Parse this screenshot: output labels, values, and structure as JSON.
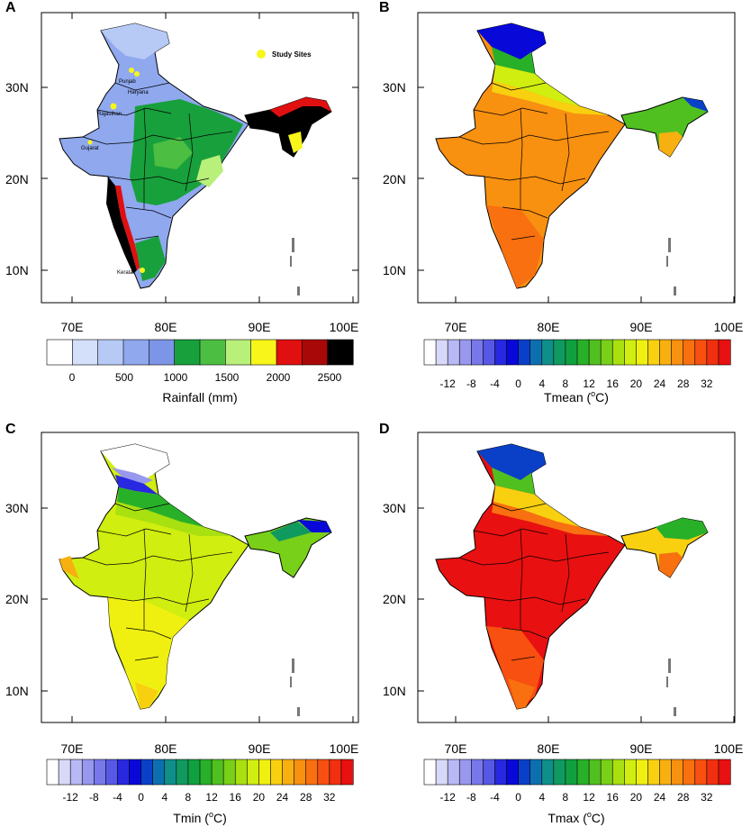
{
  "lon_ticks": [
    "70E",
    "80E",
    "90E",
    "100E"
  ],
  "lat_ticks": [
    "30N",
    "20N",
    "10N"
  ],
  "panels": {
    "A": {
      "letter": "A",
      "title": "Rainfall (mm)",
      "legend_labels": [
        "0",
        "500",
        "1000",
        "1500",
        "2000",
        "2500"
      ],
      "legend_colors": [
        "#ffffff",
        "#d4dffa",
        "#b7c9f5",
        "#8fa8ee",
        "#7d95e6",
        "#18a03c",
        "#4cbe42",
        "#b8f07a",
        "#f8f51a",
        "#e01010",
        "#a80808",
        "#000000"
      ],
      "map_labels": {
        "legend_site": "Study Sites",
        "punjab": "Punjab",
        "haryana": "Haryana",
        "rajasthan": "Rajasthan",
        "gujarat": "Gujarat",
        "kerala": "Kerala"
      }
    },
    "B": {
      "letter": "B",
      "title_prefix": "Tmean (",
      "title_sup": "o",
      "title_suffix": "C)",
      "legend_labels": [
        "-12",
        "-8",
        "-4",
        "0",
        "4",
        "8",
        "12",
        "16",
        "20",
        "24",
        "28",
        "32"
      ]
    },
    "C": {
      "letter": "C",
      "title_prefix": "Tmin (",
      "title_sup": "o",
      "title_suffix": "C)",
      "legend_labels": [
        "-12",
        "-8",
        "-4",
        "0",
        "4",
        "8",
        "12",
        "16",
        "20",
        "24",
        "28",
        "32"
      ]
    },
    "D": {
      "letter": "D",
      "title_prefix": "Tmax (",
      "title_sup": "o",
      "title_suffix": "C)",
      "legend_labels": [
        "-12",
        "-8",
        "-4",
        "0",
        "4",
        "8",
        "12",
        "16",
        "20",
        "24",
        "28",
        "32"
      ]
    }
  },
  "temp_colors": [
    "#ffffff",
    "#d8d8f8",
    "#b8b8f4",
    "#9898ee",
    "#7878ea",
    "#5858e6",
    "#2828e0",
    "#0808d8",
    "#0a40c8",
    "#0c70b0",
    "#0e8f8a",
    "#109a60",
    "#10a040",
    "#28b028",
    "#50c020",
    "#78d018",
    "#a8e010",
    "#d0ee10",
    "#f0f010",
    "#f8d010",
    "#f8b010",
    "#f89010",
    "#f87010",
    "#f85010",
    "#f03010",
    "#e81010"
  ]
}
